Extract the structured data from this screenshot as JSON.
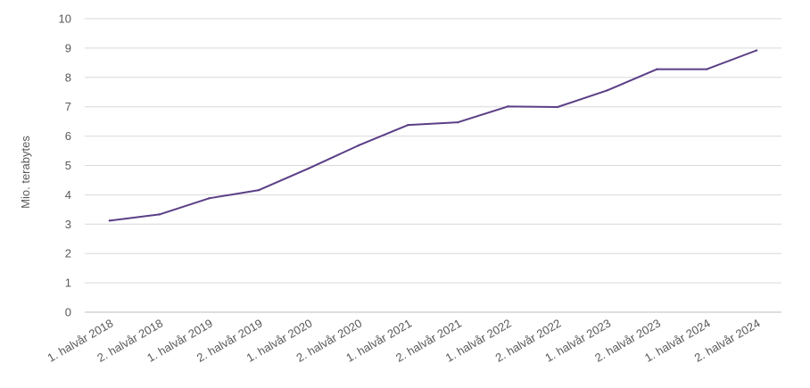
{
  "chart_data": {
    "type": "line",
    "title": "",
    "xlabel": "",
    "ylabel": "Mio. terabytes",
    "ylim": [
      0,
      10
    ],
    "yticks": [
      0,
      1,
      2,
      3,
      4,
      5,
      6,
      7,
      8,
      9,
      10
    ],
    "grid": true,
    "legend": "none",
    "categories": [
      "1. halvår 2018",
      "2. halvår 2018",
      "1. halvår 2019",
      "2. halvår 2019",
      "1. halvår 2020",
      "2. halvår 2020",
      "1. halvår 2021",
      "2. halvår 2021",
      "1. halvår 2022",
      "2. halvår 2022",
      "1. halvår 2023",
      "2. halvår 2023",
      "1. halvår 2024",
      "2. halvår 2024"
    ],
    "series": [
      {
        "values": [
          3.12,
          3.33,
          3.88,
          4.16,
          4.9,
          5.68,
          6.38,
          6.47,
          7.01,
          6.99,
          7.56,
          8.28,
          8.28,
          8.92
        ],
        "color": "#5b3f86"
      }
    ],
    "colors": {
      "grid": "#d9d9d9",
      "axis": "#bfbfbf",
      "text": "#595959"
    }
  }
}
